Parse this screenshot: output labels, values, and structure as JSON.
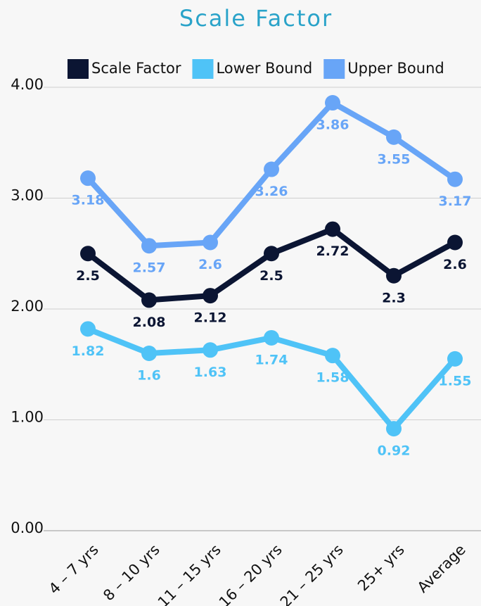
{
  "chart_data": {
    "type": "line",
    "title": "Scale Factor",
    "categories": [
      "4 – 7 yrs",
      "8 – 10 yrs",
      "11 – 15 yrs",
      "16 – 20 yrs",
      "21 – 25 yrs",
      "25+ yrs",
      "Average"
    ],
    "series": [
      {
        "name": "Scale Factor",
        "color": "#0b1533",
        "values": [
          2.5,
          2.08,
          2.12,
          2.5,
          2.72,
          2.3,
          2.6
        ]
      },
      {
        "name": "Lower Bound",
        "color": "#4fc3f7",
        "values": [
          1.82,
          1.6,
          1.63,
          1.74,
          1.58,
          0.92,
          1.55
        ]
      },
      {
        "name": "Upper Bound",
        "color": "#68a5f7",
        "values": [
          3.18,
          2.57,
          2.6,
          3.26,
          3.86,
          3.55,
          3.17
        ]
      }
    ],
    "ylim": [
      0,
      4
    ],
    "yticks": [
      {
        "value": 0,
        "label": "0.00"
      },
      {
        "value": 1,
        "label": "1.00"
      },
      {
        "value": 2,
        "label": "2.00"
      },
      {
        "value": 3,
        "label": "3.00"
      },
      {
        "value": 4,
        "label": "4.00"
      }
    ],
    "grid": true,
    "legend": "top"
  }
}
